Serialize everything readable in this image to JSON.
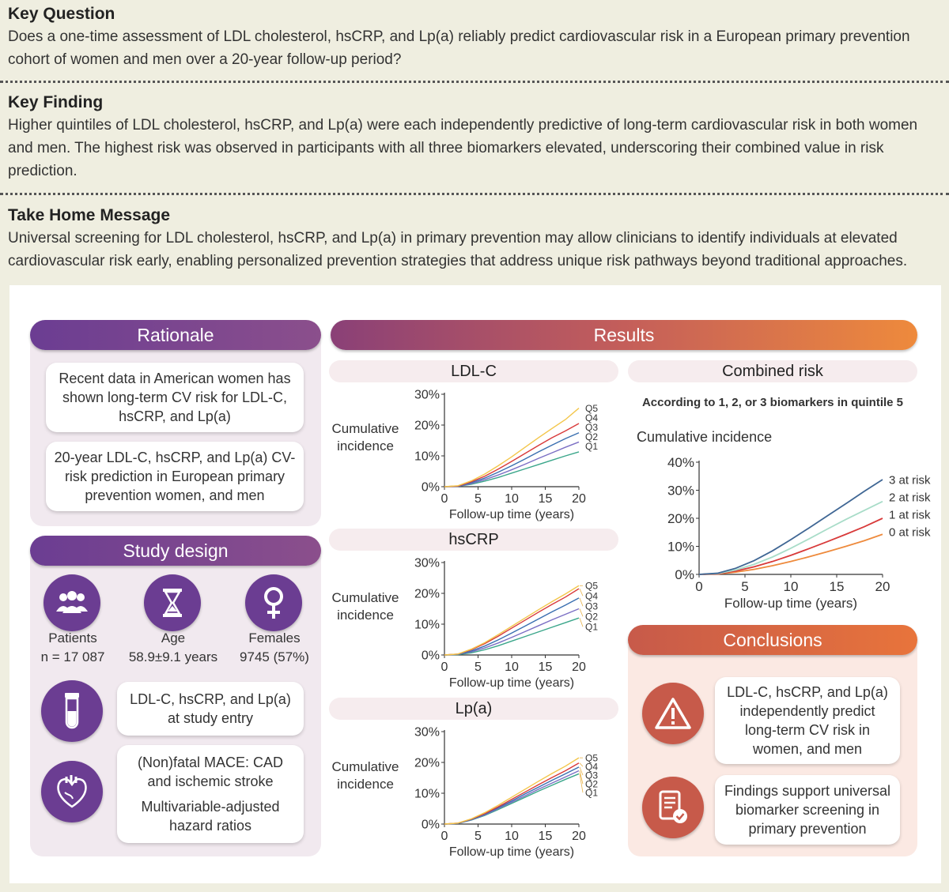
{
  "key_question": {
    "title": "Key Question",
    "text": "Does a one-time assessment of LDL cholesterol, hsCRP, and Lp(a) reliably predict cardiovascular risk in a European primary prevention cohort of women and men over a 20-year follow-up period?"
  },
  "key_finding": {
    "title": "Key Finding",
    "text": "Higher quintiles of LDL cholesterol, hsCRP, and Lp(a) were each independently predictive of long-term cardiovascular risk in both women and men. The highest risk was observed in participants with all three biomarkers elevated, underscoring their combined value in risk prediction."
  },
  "take_home": {
    "title": "Take Home Message",
    "text": "Universal screening for LDL cholesterol, hsCRP, and Lp(a) in primary prevention may allow clinicians to identify individuals at elevated cardiovascular risk early, enabling personalized prevention strategies that address unique risk pathways beyond traditional approaches."
  },
  "rationale": {
    "title": "Rationale",
    "card1": "Recent data in American women has shown long-term CV risk for LDL-C, hsCRP, and Lp(a)",
    "card2": "20-year LDL-C, hsCRP, and Lp(a) CV-risk prediction in European primary prevention women, and men"
  },
  "study_design": {
    "title": "Study design",
    "patients_label": "Patients",
    "patients_value": "n = 17 087",
    "age_label": "Age",
    "age_value": "58.9±9.1 years",
    "females_label": "Females",
    "females_value": "9745 (57%)",
    "biomarkers": "LDL-C, hsCRP, and Lp(a) at study entry",
    "outcome1": "(Non)fatal MACE: CAD and ischemic stroke",
    "outcome2": "Multivariable-adjusted hazard ratios",
    "icons": [
      "people-icon",
      "hourglass-icon",
      "female-icon",
      "test-tube-icon",
      "heart-icon"
    ]
  },
  "results": {
    "title": "Results",
    "ylabel_1": "Cumulative",
    "ylabel_2": "incidence",
    "xlabel": "Follow-up time (years)"
  },
  "combined": {
    "title": "Combined risk",
    "subtitle": "According to 1, 2, or 3 biomarkers in quintile 5",
    "ylabel": "Cumulative incidence"
  },
  "conclusions": {
    "title": "Conclusions",
    "card1": "LDL-C, hsCRP, and Lp(a) independently predict long-term CV risk in women, and men",
    "card2": "Findings support universal biomarker screening in primary prevention",
    "icons": [
      "warning-icon",
      "document-check-icon"
    ]
  },
  "colors": {
    "purple": "#6b3d92",
    "orange": "#e8743b",
    "q1": "#3aa68a",
    "q2": "#7b6fc4",
    "q3": "#3a6fb0",
    "q4": "#d83a3a",
    "q5": "#f3c64a",
    "risk0": "#ee8a3c",
    "risk1": "#d83a3a",
    "risk2": "#a8dcc8",
    "risk3": "#3f6694"
  },
  "chart_data": [
    {
      "type": "line",
      "title": "LDL-C",
      "ylabel": "Cumulative incidence",
      "xlabel": "Follow-up time (years)",
      "xlim": [
        0,
        20
      ],
      "ylim": [
        0,
        30
      ],
      "xticks": [
        "0",
        "5",
        "10",
        "15",
        "20"
      ],
      "yticks": [
        "0%",
        "10%",
        "20%",
        "30%"
      ],
      "x": [
        0,
        2,
        4,
        6,
        8,
        10,
        12,
        14,
        16,
        18,
        20
      ],
      "series": [
        {
          "name": "Q1",
          "values": [
            0,
            0.1,
            0.8,
            1.8,
            3.0,
            4.4,
            5.8,
            7.2,
            8.6,
            10.0,
            11.3
          ]
        },
        {
          "name": "Q2",
          "values": [
            0,
            0.1,
            1.0,
            2.3,
            3.8,
            5.5,
            7.3,
            9.2,
            11.0,
            12.8,
            14.5
          ]
        },
        {
          "name": "Q3",
          "values": [
            0,
            0.2,
            1.3,
            2.8,
            4.7,
            6.8,
            9.0,
            11.3,
            13.5,
            15.6,
            17.5
          ]
        },
        {
          "name": "Q4",
          "values": [
            0,
            0.2,
            1.6,
            3.4,
            5.7,
            8.2,
            10.8,
            13.4,
            15.9,
            18.1,
            20.5
          ]
        },
        {
          "name": "Q5",
          "values": [
            0,
            0.3,
            1.9,
            4.1,
            6.8,
            9.7,
            12.8,
            15.9,
            18.9,
            21.8,
            25.5
          ]
        }
      ]
    },
    {
      "type": "line",
      "title": "hsCRP",
      "ylabel": "Cumulative incidence",
      "xlabel": "Follow-up time (years)",
      "xlim": [
        0,
        20
      ],
      "ylim": [
        0,
        30
      ],
      "xticks": [
        "0",
        "5",
        "10",
        "15",
        "20"
      ],
      "yticks": [
        "0%",
        "10%",
        "20%",
        "30%"
      ],
      "x": [
        0,
        2,
        4,
        6,
        8,
        10,
        12,
        14,
        16,
        18,
        20
      ],
      "series": [
        {
          "name": "Q1",
          "values": [
            0,
            0.1,
            0.7,
            1.7,
            3.0,
            4.5,
            6.0,
            7.5,
            9.0,
            10.5,
            12.0
          ]
        },
        {
          "name": "Q2",
          "values": [
            0,
            0.2,
            1.0,
            2.3,
            3.9,
            5.7,
            7.6,
            9.5,
            11.4,
            13.2,
            15.0
          ]
        },
        {
          "name": "Q3",
          "values": [
            0,
            0.2,
            1.3,
            2.9,
            4.9,
            7.1,
            9.4,
            11.7,
            14.0,
            16.2,
            18.5
          ]
        },
        {
          "name": "Q4",
          "values": [
            0,
            0.3,
            1.7,
            3.7,
            6.1,
            8.7,
            11.3,
            13.9,
            16.4,
            18.8,
            21.5
          ]
        },
        {
          "name": "Q5",
          "values": [
            0,
            0.3,
            1.9,
            4.0,
            6.6,
            9.3,
            12.0,
            14.7,
            17.3,
            19.8,
            22.5
          ]
        }
      ]
    },
    {
      "type": "line",
      "title": "Lp(a)",
      "ylabel": "Cumulative incidence",
      "xlabel": "Follow-up time (years)",
      "xlim": [
        0,
        20
      ],
      "ylim": [
        0,
        30
      ],
      "xticks": [
        "0",
        "5",
        "10",
        "15",
        "20"
      ],
      "yticks": [
        "0%",
        "10%",
        "20%",
        "30%"
      ],
      "x": [
        0,
        2,
        4,
        6,
        8,
        10,
        12,
        14,
        16,
        18,
        20
      ],
      "series": [
        {
          "name": "Q1",
          "values": [
            0,
            0.2,
            1.3,
            2.8,
            4.7,
            6.7,
            8.7,
            10.7,
            12.6,
            14.5,
            16.3
          ]
        },
        {
          "name": "Q2",
          "values": [
            0,
            0.2,
            1.4,
            3.0,
            5.0,
            7.1,
            9.2,
            11.3,
            13.3,
            15.3,
            17.3
          ]
        },
        {
          "name": "Q3",
          "values": [
            0,
            0.2,
            1.5,
            3.2,
            5.3,
            7.5,
            9.8,
            12.0,
            14.2,
            16.3,
            18.5
          ]
        },
        {
          "name": "Q4",
          "values": [
            0,
            0.3,
            1.6,
            3.4,
            5.6,
            8.0,
            10.4,
            12.8,
            15.1,
            17.3,
            19.8
          ]
        },
        {
          "name": "Q5",
          "values": [
            0,
            0.3,
            1.7,
            3.7,
            6.1,
            8.7,
            11.3,
            13.9,
            16.4,
            18.8,
            21.5
          ]
        }
      ]
    },
    {
      "type": "line",
      "title": "Combined risk",
      "subtitle": "According to 1, 2, or 3 biomarkers in quintile 5",
      "ylabel": "Cumulative incidence",
      "xlabel": "Follow-up time (years)",
      "xlim": [
        0,
        20
      ],
      "ylim": [
        0,
        40
      ],
      "xticks": [
        "0",
        "5",
        "10",
        "15",
        "20"
      ],
      "yticks": [
        "0%",
        "10%",
        "20%",
        "30%",
        "40%"
      ],
      "x": [
        0,
        2,
        4,
        6,
        8,
        10,
        12,
        14,
        16,
        18,
        20
      ],
      "series": [
        {
          "name": "0 at risk",
          "values": [
            0,
            0.1,
            0.8,
            1.8,
            3.1,
            4.6,
            6.3,
            8.1,
            10.0,
            12.0,
            14.3
          ]
        },
        {
          "name": "1 at risk",
          "values": [
            0,
            0.2,
            1.2,
            2.7,
            4.6,
            6.8,
            9.2,
            11.7,
            14.3,
            17.0,
            20.0
          ]
        },
        {
          "name": "2 at risk",
          "values": [
            0,
            0.3,
            1.6,
            3.6,
            6.2,
            9.3,
            12.7,
            16.2,
            19.6,
            22.8,
            26.0
          ]
        },
        {
          "name": "3 at risk",
          "values": [
            0,
            0.4,
            2.2,
            4.9,
            8.4,
            12.4,
            16.6,
            20.9,
            25.2,
            29.6,
            33.8
          ]
        }
      ]
    }
  ]
}
